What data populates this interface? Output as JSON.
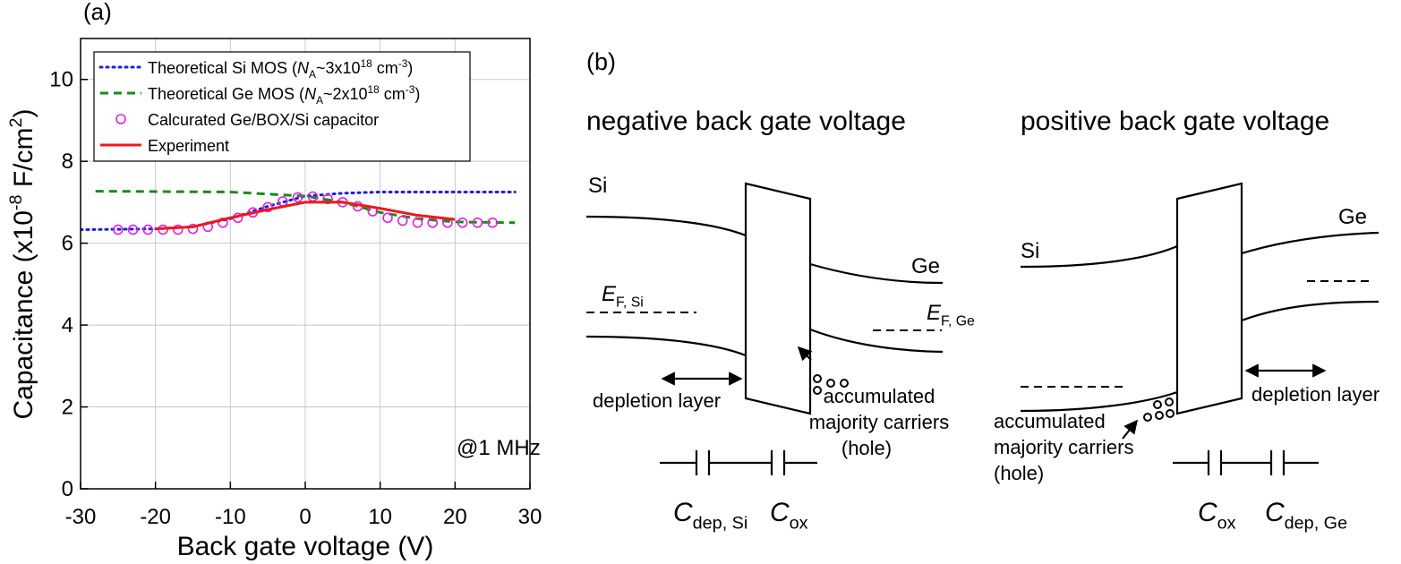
{
  "chart_data": {
    "type": "line",
    "panel_label": "(a)",
    "xlabel": "Back gate voltage (V)",
    "ylabel": [
      {
        "text": "Capacitance (x10"
      },
      {
        "text": "-8",
        "style": "sup"
      },
      {
        "text": " F/cm"
      },
      {
        "text": "2",
        "style": "sup"
      },
      {
        "text": ")"
      }
    ],
    "annotation": "@1 MHz",
    "xlim": [
      -30,
      30
    ],
    "xticks": [
      -30,
      -20,
      -10,
      0,
      10,
      20,
      30
    ],
    "ylim": [
      0,
      11
    ],
    "yticks": [
      0,
      2,
      4,
      6,
      8,
      10
    ],
    "grid": true,
    "legend": "upper left",
    "series": [
      {
        "name": [
          {
            "text": "Theoretical Si MOS ("
          },
          {
            "text": "N",
            "style": "italic"
          },
          {
            "text": "A",
            "style": "sub"
          },
          {
            "text": "~3x10"
          },
          {
            "text": "18",
            "style": "sup"
          },
          {
            "text": " cm"
          },
          {
            "text": "-3",
            "style": "sup"
          },
          {
            "text": ")"
          }
        ],
        "color": "#1f1fd8",
        "style": "dotted",
        "x": [
          -30,
          -20,
          -15,
          -10,
          -5,
          0,
          5,
          10,
          20,
          28
        ],
        "values": [
          6.33,
          6.35,
          6.4,
          6.6,
          6.9,
          7.15,
          7.22,
          7.25,
          7.25,
          7.25
        ]
      },
      {
        "name": [
          {
            "text": "Theoretical Ge MOS ("
          },
          {
            "text": "N",
            "style": "italic"
          },
          {
            "text": "A",
            "style": "sub"
          },
          {
            "text": "~2x10"
          },
          {
            "text": "18",
            "style": "sup"
          },
          {
            "text": " cm"
          },
          {
            "text": "-3",
            "style": "sup"
          },
          {
            "text": ")"
          }
        ],
        "color": "#1a8a1a",
        "style": "dashed",
        "x": [
          -28,
          -10,
          0,
          5,
          10,
          15,
          20,
          28
        ],
        "values": [
          7.27,
          7.25,
          7.15,
          7.0,
          6.75,
          6.6,
          6.52,
          6.5
        ]
      },
      {
        "name": [
          {
            "text": "Calcurated Ge/BOX/Si capacitor"
          }
        ],
        "color": "#e020e0",
        "style": "circle",
        "x": [
          -25,
          -23,
          -21,
          -19,
          -17,
          -15,
          -13,
          -11,
          -9,
          -7,
          -5,
          -3,
          -1,
          1,
          3,
          5,
          7,
          9,
          11,
          13,
          15,
          17,
          19,
          21,
          23,
          25
        ],
        "values": [
          6.33,
          6.33,
          6.33,
          6.33,
          6.33,
          6.35,
          6.4,
          6.5,
          6.62,
          6.75,
          6.88,
          7.02,
          7.12,
          7.14,
          7.08,
          7.0,
          6.9,
          6.78,
          6.62,
          6.55,
          6.5,
          6.5,
          6.5,
          6.5,
          6.5,
          6.5
        ]
      },
      {
        "name": [
          {
            "text": "Experiment"
          }
        ],
        "color": "#f01818",
        "style": "solid",
        "x": [
          -20,
          -15,
          -10,
          -5,
          0,
          5,
          10,
          15,
          20
        ],
        "values": [
          6.35,
          6.4,
          6.62,
          6.82,
          7.0,
          7.0,
          6.85,
          6.68,
          6.58
        ]
      }
    ]
  },
  "diagram": {
    "label": "(b)",
    "negative": {
      "title": "negative back gate voltage",
      "si": "Si",
      "ge": "Ge",
      "ef_si": [
        {
          "text": "E",
          "style": "italic"
        },
        {
          "text": "F, Si",
          "style": "sub"
        }
      ],
      "ef_ge": [
        {
          "text": "E",
          "style": "italic"
        },
        {
          "text": "F, Ge",
          "style": "sub"
        }
      ],
      "depletion": "depletion layer",
      "carriers": [
        "accumulated",
        "majority carriers",
        "(hole)"
      ],
      "c_dep": [
        {
          "text": "C",
          "style": "italic"
        },
        {
          "text": "dep",
          "style": "sub"
        },
        {
          "text": ", Si",
          "style": "sub"
        }
      ],
      "c_ox": [
        {
          "text": "C",
          "style": "italic"
        },
        {
          "text": "ox",
          "style": "sub"
        }
      ]
    },
    "positive": {
      "title": "positive back gate voltage",
      "si": "Si",
      "ge": "Ge",
      "depletion": "depletion layer",
      "carriers": [
        "accumulated",
        "majority carriers",
        "(hole)"
      ],
      "c_ox": [
        {
          "text": "C",
          "style": "italic"
        },
        {
          "text": "ox",
          "style": "sub"
        }
      ],
      "c_dep": [
        {
          "text": "C",
          "style": "italic"
        },
        {
          "text": "dep",
          "style": "sub"
        },
        {
          "text": ", Ge",
          "style": "sub"
        }
      ]
    }
  }
}
